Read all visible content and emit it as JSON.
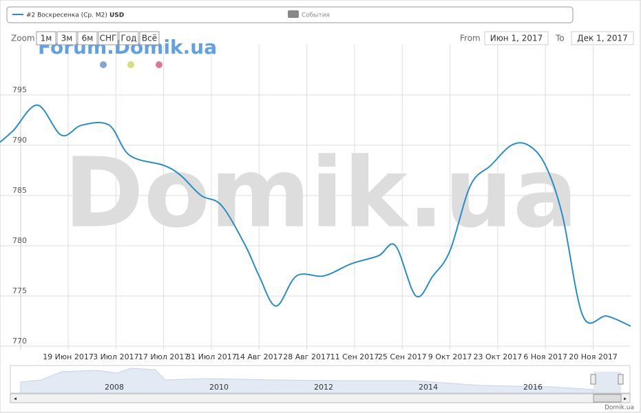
{
  "legend": {
    "events": "События"
  },
  "controls": {
    "zoom_label": "Zoom",
    "buttons": [
      "1м",
      "3м",
      "6м",
      "СНГ",
      "Год",
      "Всё"
    ],
    "from_label": "From",
    "from_value": "Июн 1, 2017",
    "to_label": "To",
    "to_value": "Дек 1, 2017"
  },
  "watermarks": {
    "forum": "Forum.Domik.ua",
    "main": "Domik.ua",
    "credit": "Domik.ua"
  },
  "navigator": {
    "years": [
      "2008",
      "2010",
      "2012",
      "2014",
      "2016"
    ]
  },
  "chart_data": {
    "type": "line",
    "x": [
      "2017-05-30",
      "2017-06-03",
      "2017-06-10",
      "2017-06-17",
      "2017-06-23",
      "2017-07-01",
      "2017-07-07",
      "2017-07-17",
      "2017-07-22",
      "2017-07-28",
      "2017-08-03",
      "2017-08-10",
      "2017-08-14",
      "2017-08-19",
      "2017-08-25",
      "2017-09-02",
      "2017-09-10",
      "2017-09-18",
      "2017-09-23",
      "2017-09-29",
      "2017-10-04",
      "2017-10-09",
      "2017-10-15",
      "2017-10-21",
      "2017-10-27",
      "2017-11-01",
      "2017-11-06",
      "2017-11-11",
      "2017-11-17",
      "2017-11-24",
      "2017-12-01"
    ],
    "series": [
      {
        "name": "#2 Воскресенка (Ср. М2)",
        "unit": "USD",
        "color": "#2b8cc4",
        "values": [
          790.3,
          791.5,
          794,
          791,
          792,
          792,
          789,
          788,
          787,
          785,
          784,
          780,
          777,
          774,
          777,
          777,
          778.2,
          779,
          780,
          775,
          777,
          779.5,
          786,
          788,
          790,
          790,
          788,
          783,
          773,
          773,
          772
        ]
      }
    ],
    "xlim": [
      "2017-05-30",
      "2017-12-01"
    ],
    "xticks": [
      {
        "value": "2017-06-19",
        "label": "19 Июн 2017"
      },
      {
        "value": "2017-07-03",
        "label": "3 Июл 2017"
      },
      {
        "value": "2017-07-17",
        "label": "17 Июл 2017"
      },
      {
        "value": "2017-07-31",
        "label": "31 Июл 2017"
      },
      {
        "value": "2017-08-14",
        "label": "14 Авг 2017"
      },
      {
        "value": "2017-08-28",
        "label": "28 Авг 2017"
      },
      {
        "value": "2017-09-11",
        "label": "11 Сен 2017"
      },
      {
        "value": "2017-09-25",
        "label": "25 Сен 2017"
      },
      {
        "value": "2017-10-09",
        "label": "9 Окт 2017"
      },
      {
        "value": "2017-10-23",
        "label": "23 Окт 2017"
      },
      {
        "value": "2017-11-06",
        "label": "6 Ноя 2017"
      },
      {
        "value": "2017-11-20",
        "label": "20 Ноя 2017"
      }
    ],
    "ylim": [
      770,
      800
    ],
    "yticks": [
      770,
      775,
      780,
      785,
      790,
      795
    ],
    "grid": true
  }
}
